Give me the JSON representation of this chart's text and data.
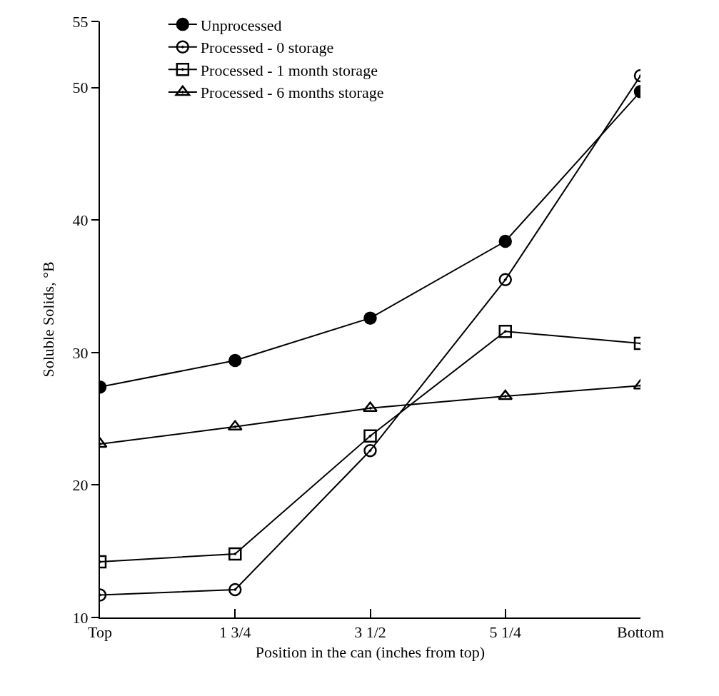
{
  "chart_data": {
    "type": "line",
    "xlabel": "Position in the can (inches from top)",
    "ylabel": "Soluble Solids, °B",
    "categories": [
      "Top",
      "1 3/4",
      "3 1/2",
      "5 1/4",
      "Bottom"
    ],
    "ylim": [
      10,
      55
    ],
    "yticks": [
      10,
      20,
      30,
      40,
      50,
      55
    ],
    "grid": false,
    "legend": "top left",
    "series": [
      {
        "name": "Unprocessed",
        "color": "#000000",
        "marker": "circle",
        "values": [
          27.4,
          29.4,
          32.6,
          38.4,
          49.7
        ]
      },
      {
        "name": "Processed - 0 storage",
        "color": "#000000",
        "marker": "circle",
        "values": [
          11.7,
          12.1,
          22.6,
          35.5,
          50.9
        ]
      },
      {
        "name": "Processed - 1 month storage",
        "color": "#000000",
        "marker": "square",
        "values": [
          14.2,
          14.8,
          23.7,
          31.6,
          30.7
        ]
      },
      {
        "name": "Processed - 6 months storage",
        "color": "#000000",
        "marker": "triangle",
        "values": [
          23.1,
          24.4,
          25.8,
          26.7,
          27.5
        ]
      }
    ]
  }
}
